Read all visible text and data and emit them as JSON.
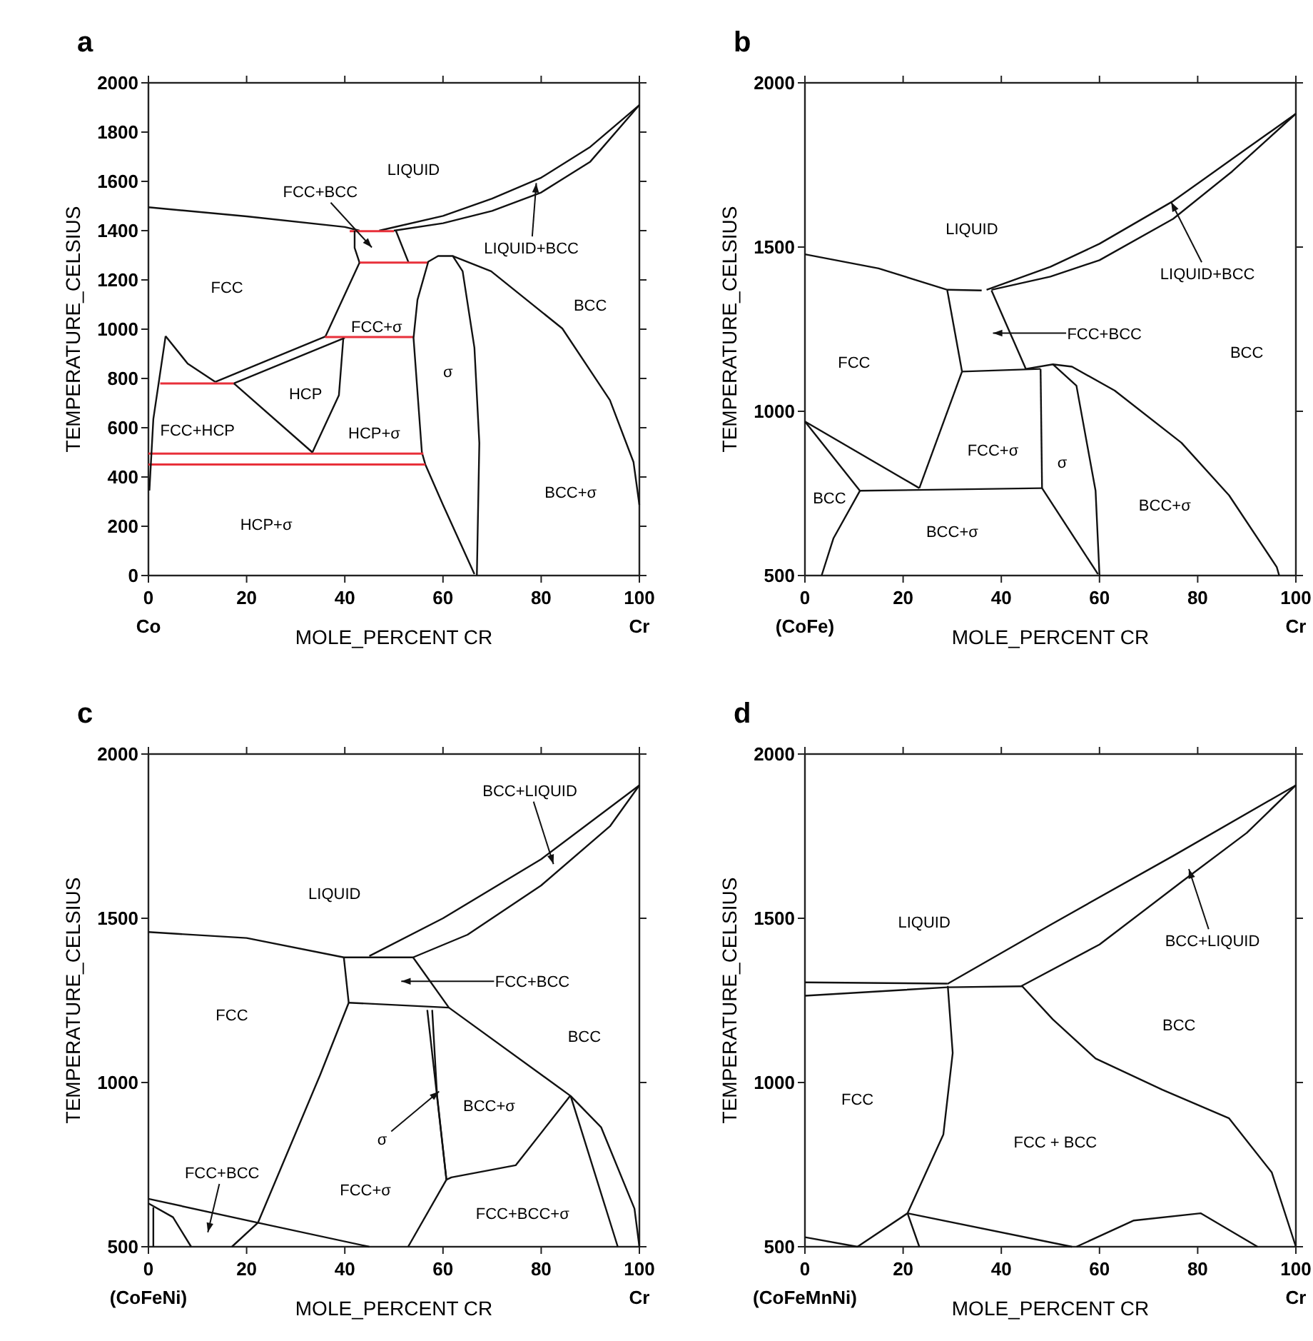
{
  "chart_data": [
    {
      "type": "line",
      "title": "a",
      "xlabel": "MOLE_PERCENT CR",
      "ylabel": "TEMPERATURE_CELSIUS",
      "xlim": [
        0,
        100
      ],
      "ylim": [
        0,
        2000
      ],
      "xticks": [
        0,
        20,
        40,
        60,
        80,
        100
      ],
      "yticks": [
        0,
        200,
        400,
        600,
        800,
        1000,
        1200,
        1400,
        1600,
        1800,
        2000
      ],
      "grid": false,
      "series": [
        {
          "color": "#111111",
          "x": [
            0,
            20,
            40,
            43
          ],
          "values": [
            1495,
            1458,
            1415,
            1400
          ]
        },
        {
          "color": "#111111",
          "x": [
            47,
            60,
            70,
            80,
            90,
            100
          ],
          "values": [
            1400,
            1460,
            1530,
            1615,
            1740,
            1910
          ]
        },
        {
          "color": "#111111",
          "x": [
            50,
            60,
            70,
            80,
            90,
            100
          ],
          "values": [
            1400,
            1430,
            1480,
            1555,
            1680,
            1910
          ]
        },
        {
          "color": "#e8303a",
          "x": [
            41,
            50
          ],
          "values": [
            1398,
            1398
          ]
        },
        {
          "color": "#111111",
          "x": [
            42,
            42,
            43
          ],
          "values": [
            1400,
            1330,
            1270
          ]
        },
        {
          "color": "#111111",
          "x": [
            50.4,
            53
          ],
          "values": [
            1400,
            1270
          ]
        },
        {
          "color": "#e8303a",
          "x": [
            43,
            57
          ],
          "values": [
            1270,
            1270
          ]
        },
        {
          "color": "#111111",
          "x": [
            43,
            36
          ],
          "values": [
            1270,
            968
          ]
        },
        {
          "color": "#111111",
          "x": [
            13.6,
            36
          ],
          "values": [
            786,
            970
          ]
        },
        {
          "color": "#111111",
          "x": [
            17.4,
            40
          ],
          "values": [
            780,
            965
          ]
        },
        {
          "color": "#e8303a",
          "x": [
            36,
            54
          ],
          "values": [
            968,
            968
          ]
        },
        {
          "color": "#111111",
          "x": [
            66.4,
            60,
            56.4,
            55.7,
            54,
            54.8,
            57,
            59,
            62,
            64,
            66.4,
            67.4,
            66.9
          ],
          "values": [
            6,
            287,
            451,
            500,
            964,
            1119,
            1274,
            1297,
            1297,
            1235,
            925,
            538,
            0
          ]
        },
        {
          "color": "#111111",
          "x": [
            62,
            69.8,
            84.3,
            94,
            98.8,
            100
          ],
          "values": [
            1297,
            1235,
            1003,
            712,
            461,
            287
          ]
        },
        {
          "color": "#e8303a",
          "x": [
            0,
            56
          ],
          "values": [
            495,
            495
          ]
        },
        {
          "color": "#e8303a",
          "x": [
            0,
            56.4
          ],
          "values": [
            451,
            451
          ]
        },
        {
          "color": "#111111",
          "x": [
            3.5,
            8,
            13.6
          ],
          "values": [
            972,
            860,
            786
          ]
        },
        {
          "color": "#111111",
          "x": [
            3.5,
            1,
            0.2
          ],
          "values": [
            972,
            635,
            345
          ]
        },
        {
          "color": "#e8303a",
          "x": [
            2.4,
            17.4
          ],
          "values": [
            780,
            780
          ]
        },
        {
          "color": "#111111",
          "x": [
            17.4,
            33.4
          ],
          "values": [
            780,
            500
          ]
        },
        {
          "color": "#111111",
          "x": [
            33.4,
            38.8,
            39.7
          ],
          "values": [
            500,
            732,
            964
          ]
        }
      ],
      "annotations": [
        "LIQUID",
        "FCC+BCC",
        "LIQUID+BCC",
        "FCC",
        "BCC",
        "FCC+σ",
        "σ",
        "HCP",
        "FCC+HCP",
        "HCP+σ",
        "HCP+σ",
        "BCC+σ",
        "Co",
        "Cr"
      ]
    },
    {
      "type": "line",
      "title": "b",
      "xlabel": "MOLE_PERCENT CR",
      "ylabel": "TEMPERATURE_CELSIUS",
      "xlim": [
        0,
        100
      ],
      "ylim": [
        500,
        2000
      ],
      "xticks": [
        0,
        20,
        40,
        60,
        80,
        100
      ],
      "yticks": [
        500,
        1000,
        1500,
        2000
      ],
      "grid": false,
      "series": [
        {
          "color": "#111111",
          "x": [
            0,
            15,
            29,
            36
          ],
          "values": [
            1478,
            1435,
            1370,
            1368
          ]
        },
        {
          "color": "#111111",
          "x": [
            37,
            50,
            60,
            75,
            90,
            100
          ],
          "values": [
            1370,
            1440,
            1510,
            1640,
            1800,
            1906
          ]
        },
        {
          "color": "#111111",
          "x": [
            38,
            50,
            60,
            75,
            87,
            100
          ],
          "values": [
            1370,
            1410,
            1460,
            1586,
            1730,
            1906
          ]
        },
        {
          "color": "#111111",
          "x": [
            29,
            32
          ],
          "values": [
            1368,
            1121
          ]
        },
        {
          "color": "#111111",
          "x": [
            38,
            45
          ],
          "values": [
            1368,
            1129
          ]
        },
        {
          "color": "#111111",
          "x": [
            32,
            48
          ],
          "values": [
            1121,
            1129
          ]
        },
        {
          "color": "#111111",
          "x": [
            48,
            48.3
          ],
          "values": [
            1129,
            766
          ]
        },
        {
          "color": "#111111",
          "x": [
            45,
            50.5,
            55.3,
            59.2,
            60
          ],
          "values": [
            1129,
            1143,
            1078,
            758,
            500
          ]
        },
        {
          "color": "#111111",
          "x": [
            50.5,
            54.4,
            63.1,
            76.7,
            86.4,
            96.1,
            96.6
          ],
          "values": [
            1143,
            1136,
            1063,
            904,
            744,
            526,
            500
          ]
        },
        {
          "color": "#111111",
          "x": [
            48.3,
            59.7
          ],
          "values": [
            766,
            504
          ]
        },
        {
          "color": "#111111",
          "x": [
            11.2,
            48.3
          ],
          "values": [
            758,
            766
          ]
        },
        {
          "color": "#111111",
          "x": [
            32,
            23.3
          ],
          "values": [
            1121,
            766
          ]
        },
        {
          "color": "#111111",
          "x": [
            0,
            23.3
          ],
          "values": [
            969,
            766
          ]
        },
        {
          "color": "#111111",
          "x": [
            0,
            11.2
          ],
          "values": [
            969,
            758
          ]
        },
        {
          "color": "#111111",
          "x": [
            11.2,
            5.8,
            3.4
          ],
          "values": [
            758,
            613,
            500
          ]
        }
      ],
      "annotations": [
        "LIQUID",
        {
          "text": "LIQUID+BCC",
          "x": 74.6,
          "y": 1637
        },
        "FCC+BCC",
        "FCC",
        "BCC",
        "FCC+σ",
        "σ",
        "BCC",
        "BCC+σ",
        "BCC+σ",
        "(CoFe)",
        "Cr"
      ]
    },
    {
      "type": "line",
      "title": "c",
      "xlabel": "MOLE_PERCENT CR",
      "ylabel": "TEMPERATURE_CELSIUS",
      "xlim": [
        0,
        100
      ],
      "ylim": [
        500,
        2000
      ],
      "xticks": [
        0,
        20,
        40,
        60,
        80,
        100
      ],
      "yticks": [
        500,
        1000,
        1500,
        2000
      ],
      "grid": false,
      "series": [
        {
          "color": "#111111",
          "x": [
            0,
            20,
            39.8,
            53.9,
            65,
            80,
            94,
            100
          ],
          "values": [
            1458,
            1440,
            1381,
            1381,
            1450,
            1600,
            1780,
            1905
          ]
        },
        {
          "color": "#111111",
          "x": [
            45,
            60,
            80,
            100
          ],
          "values": [
            1385,
            1500,
            1680,
            1905
          ]
        },
        {
          "color": "#111111",
          "x": [
            39.8,
            40.8
          ],
          "values": [
            1381,
            1242
          ]
        },
        {
          "color": "#111111",
          "x": [
            40.8,
            61.2
          ],
          "values": [
            1243,
            1228
          ]
        },
        {
          "color": "#111111",
          "x": [
            40.8,
            35,
            22.3,
            17
          ],
          "values": [
            1243,
            1024,
            573,
            500
          ]
        },
        {
          "color": "#111111",
          "x": [
            53.9,
            61.2,
            86,
            92.2,
            99,
            100
          ],
          "values": [
            1381,
            1228,
            959,
            864,
            616,
            500
          ]
        },
        {
          "color": "#111111",
          "x": [
            56.8,
            60.7
          ],
          "values": [
            1221,
            704
          ]
        },
        {
          "color": "#111111",
          "x": [
            57.8,
            58.8,
            60.7
          ],
          "values": [
            1221,
            960,
            704
          ]
        },
        {
          "color": "#111111",
          "x": [
            60.7,
            61.7,
            74.8,
            85.9
          ],
          "values": [
            704,
            711,
            748,
            959
          ]
        },
        {
          "color": "#111111",
          "x": [
            60.7,
            52.9
          ],
          "values": [
            704,
            500
          ]
        },
        {
          "color": "#111111",
          "x": [
            86,
            95.6
          ],
          "values": [
            959,
            500
          ]
        },
        {
          "color": "#111111",
          "x": [
            0,
            22.3,
            45
          ],
          "values": [
            646,
            573,
            500
          ]
        },
        {
          "color": "#111111",
          "x": [
            0,
            5,
            8.7
          ],
          "values": [
            632,
            590,
            500
          ]
        },
        {
          "color": "#111111",
          "x": [
            1,
            1
          ],
          "values": [
            620,
            500
          ]
        }
      ],
      "annotations": [
        "LIQUID",
        "BCC+LIQUID",
        "FCC+BCC",
        "FCC",
        "BCC",
        "BCC+σ",
        "σ",
        "FCC+BCC",
        "FCC+σ",
        "FCC+BCC+σ",
        "(CoFeNi)",
        "Cr"
      ]
    },
    {
      "type": "line",
      "title": "d",
      "xlabel": "MOLE_PERCENT CR",
      "ylabel": "TEMPERATURE_CELSIUS",
      "xlim": [
        0,
        100
      ],
      "ylim": [
        500,
        2000
      ],
      "xticks": [
        0,
        20,
        40,
        60,
        80,
        100
      ],
      "yticks": [
        500,
        1000,
        1500,
        2000
      ],
      "grid": false,
      "series": [
        {
          "color": "#111111",
          "x": [
            0,
            29
          ],
          "values": [
            1305,
            1301
          ]
        },
        {
          "color": "#111111",
          "x": [
            0,
            29,
            44.2
          ],
          "values": [
            1264,
            1290,
            1293
          ]
        },
        {
          "color": "#111111",
          "x": [
            29,
            50,
            75,
            100
          ],
          "values": [
            1300,
            1480,
            1690,
            1905
          ]
        },
        {
          "color": "#111111",
          "x": [
            44,
            60,
            77,
            90,
            100
          ],
          "values": [
            1293,
            1420,
            1614,
            1760,
            1905
          ]
        },
        {
          "color": "#111111",
          "x": [
            29.1,
            30.1,
            28.2,
            20.9
          ],
          "values": [
            1294,
            1090,
            842,
            602
          ]
        },
        {
          "color": "#111111",
          "x": [
            44.2,
            50.5,
            59.2,
            72.8,
            86.4,
            95.1,
            100
          ],
          "values": [
            1294,
            1192,
            1073,
            978,
            891,
            726,
            500
          ]
        },
        {
          "color": "#111111",
          "x": [
            0,
            10.7
          ],
          "values": [
            529,
            500
          ]
        },
        {
          "color": "#111111",
          "x": [
            10.7,
            20.9
          ],
          "values": [
            500,
            602
          ]
        },
        {
          "color": "#111111",
          "x": [
            20.9,
            23.3
          ],
          "values": [
            602,
            500
          ]
        },
        {
          "color": "#111111",
          "x": [
            20.9,
            54.4
          ],
          "values": [
            602,
            500
          ]
        },
        {
          "color": "#111111",
          "x": [
            55.3,
            67,
            80.6,
            92.2
          ],
          "values": [
            500,
            580,
            602,
            500
          ]
        }
      ],
      "annotations": [
        "LIQUID",
        {
          "text": "BCC+LIQUID",
          "x": 78.2,
          "y": 1650
        },
        "BCC",
        "FCC",
        "FCC + BCC",
        "(CoFeMnNi)",
        "Cr"
      ]
    }
  ]
}
